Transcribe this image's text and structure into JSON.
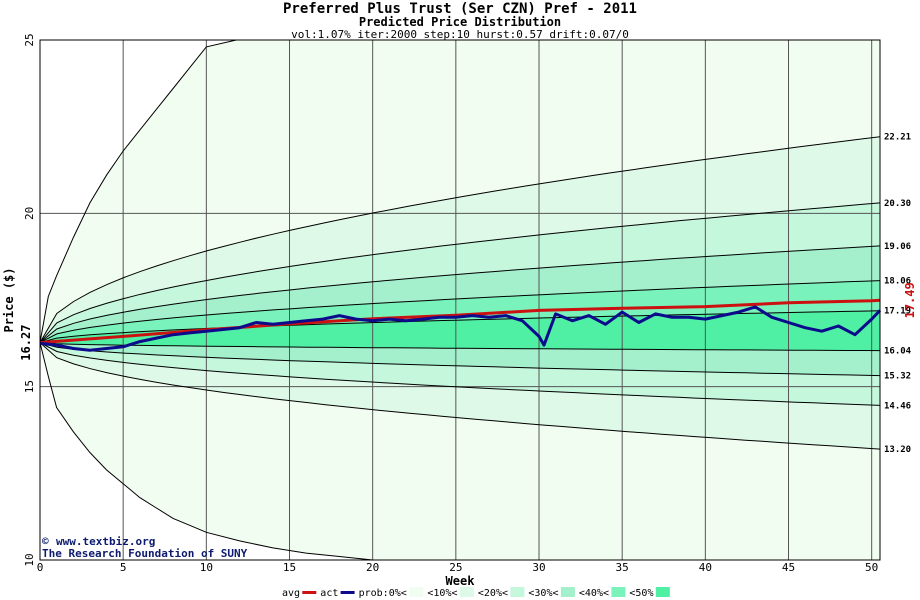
{
  "chart_data": {
    "type": "area",
    "title": "Preferred Plus Trust (Ser CZN) Pref - 2011",
    "subtitle": "Predicted Price Distribution",
    "params": "vol:1.07% iter:2000 step:10 hurst:0.57 drift:0.07/0",
    "xlabel": "Week",
    "ylabel": "Price ($)",
    "xlim": [
      0,
      50.5
    ],
    "ylim": [
      10,
      25
    ],
    "x_ticks": [
      0,
      5,
      10,
      15,
      20,
      25,
      30,
      35,
      40,
      45,
      50
    ],
    "y_ticks": [
      10,
      15,
      20,
      25
    ],
    "grid": true,
    "start_price": 16.27,
    "current_price": 17.49,
    "start_label": "16.27",
    "current_label": "17.49",
    "band_end_labels": [
      "22.21",
      "20.30",
      "19.06",
      "18.06",
      "17.19",
      "16.04",
      "15.32",
      "14.46",
      "13.20"
    ],
    "envelope": {
      "upper": [
        [
          0,
          16.27
        ],
        [
          0.5,
          17.6
        ],
        [
          1,
          18.2
        ],
        [
          2,
          19.3
        ],
        [
          3,
          20.3
        ],
        [
          4,
          21.1
        ],
        [
          5,
          21.8
        ],
        [
          6,
          22.4
        ],
        [
          7,
          23.0
        ],
        [
          8,
          23.6
        ],
        [
          9,
          24.2
        ],
        [
          10,
          24.8
        ],
        [
          11.8,
          25
        ]
      ],
      "lower": [
        [
          0,
          16.27
        ],
        [
          0.5,
          15.3
        ],
        [
          1,
          14.4
        ],
        [
          2,
          13.7
        ],
        [
          3,
          13.1
        ],
        [
          4,
          12.6
        ],
        [
          5,
          12.2
        ],
        [
          6,
          11.8
        ],
        [
          7,
          11.5
        ],
        [
          8,
          11.2
        ],
        [
          9,
          11.0
        ],
        [
          10,
          10.8
        ],
        [
          12,
          10.55
        ],
        [
          14,
          10.35
        ],
        [
          16,
          10.2
        ],
        [
          18,
          10.1
        ],
        [
          20,
          10.0
        ]
      ]
    },
    "series": [
      {
        "name": "avg",
        "color": "#cc1111",
        "x": [
          0,
          5,
          10,
          15,
          20,
          25,
          30,
          35,
          40,
          45,
          50,
          50.5
        ],
        "y": [
          16.27,
          16.45,
          16.64,
          16.81,
          16.96,
          17.06,
          17.2,
          17.26,
          17.31,
          17.42,
          17.48,
          17.49
        ]
      },
      {
        "name": "act",
        "color": "#0b0b8c",
        "x": [
          0,
          1,
          2,
          3,
          4,
          5,
          6,
          7,
          8,
          9,
          10,
          11,
          12,
          13,
          14,
          15,
          16,
          17,
          18,
          19,
          20,
          21,
          22,
          23,
          24,
          25,
          26,
          27,
          28,
          29,
          30,
          30.3,
          31,
          32,
          33,
          34,
          35,
          36,
          37,
          38,
          39,
          40,
          41,
          42,
          43,
          44,
          45,
          46,
          47,
          48,
          49,
          50,
          50.5
        ],
        "y": [
          16.25,
          16.2,
          16.1,
          16.05,
          16.1,
          16.15,
          16.3,
          16.4,
          16.5,
          16.55,
          16.6,
          16.65,
          16.7,
          16.85,
          16.8,
          16.85,
          16.9,
          16.95,
          17.05,
          16.95,
          16.9,
          16.95,
          16.9,
          16.95,
          17.0,
          17.0,
          17.05,
          17.0,
          17.05,
          16.9,
          16.45,
          16.2,
          17.1,
          16.9,
          17.05,
          16.8,
          17.15,
          16.85,
          17.1,
          17.0,
          17.0,
          16.95,
          17.05,
          17.15,
          17.3,
          17.0,
          16.85,
          16.7,
          16.6,
          16.75,
          16.5,
          16.95,
          17.2
        ]
      }
    ],
    "legend": {
      "items": [
        "avg",
        "act",
        "prob:0%<",
        "<10%<",
        "<20%<",
        "<30%<",
        "<40%<",
        "<50%"
      ],
      "placement": "bottom"
    },
    "band_colors": [
      "#f2fdf2",
      "#def9e7",
      "#c4f7dc",
      "#a4f0cc",
      "#7af2bb",
      "#4ff0a4"
    ]
  },
  "credit": {
    "site": "www.textbiz.org",
    "org": "The Research Foundation of SUNY"
  }
}
